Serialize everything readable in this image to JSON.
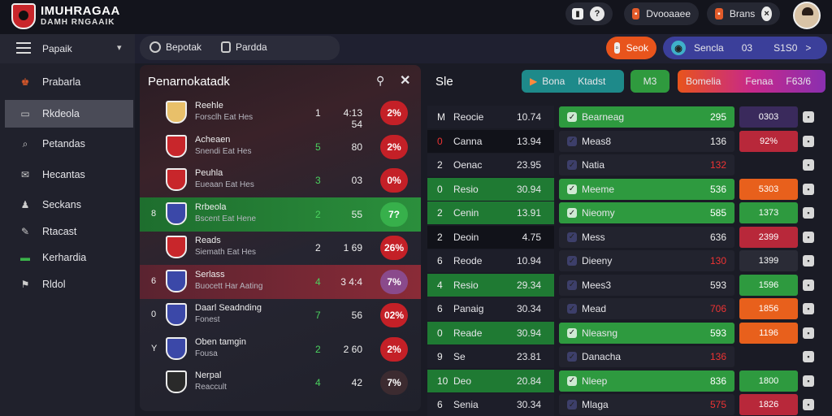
{
  "app": {
    "title1": "IMUHRAGAA",
    "title2": "DAMH RNGAAIK"
  },
  "topbar": {
    "btn1_icon": "?",
    "dropdown1": "Dvooaaee",
    "btn2": "Brans",
    "close": "×"
  },
  "sidebar": {
    "header": "Papaik",
    "chevron": "▾",
    "items": [
      {
        "label": "Prabarla",
        "icon": "trophy-icon",
        "glyph": "♚"
      },
      {
        "label": "Rkdeola",
        "icon": "folder-icon",
        "glyph": "▭"
      },
      {
        "label": "Petandas",
        "icon": "search-icon",
        "glyph": "⌕"
      },
      {
        "label": "Hecantas",
        "icon": "mail-icon",
        "glyph": "✉"
      },
      {
        "label": "Seckans",
        "icon": "person-icon",
        "glyph": "♟"
      },
      {
        "label": "Rtacast",
        "icon": "edit-icon",
        "glyph": "✎"
      },
      {
        "label": "Kerhardia",
        "icon": "screen-icon",
        "glyph": "▬"
      },
      {
        "label": "Rldol",
        "icon": "flag-icon",
        "glyph": "⚑"
      }
    ]
  },
  "subbar": {
    "tab1": "Bepotak",
    "tab2": "Pardda",
    "btn_orange": "Seok",
    "chip": "Sencla",
    "chip_num": "03",
    "chip_value": "S1S0",
    "chip_arrow": ">"
  },
  "left_panel": {
    "title": "Penarnokatadk",
    "rows": [
      {
        "name": "Reehle",
        "sub": "Forsclh Eat Hes",
        "c1": "1",
        "c2": "4:13 54",
        "pct": "2%",
        "color": "#c42027"
      },
      {
        "name": "Acheaen",
        "sub": "Snendi Eat Hes",
        "c1": "5",
        "c2": "80",
        "pct": "2%",
        "color": "#c42027"
      },
      {
        "name": "Peuhla",
        "sub": "Eueaan Eat Hes",
        "c1": "3",
        "c2": "03",
        "pct": "0%",
        "color": "#c42027"
      },
      {
        "name": "Rrbeola",
        "sub": "Bscent Eat Hene",
        "c1": "2",
        "c2": "55",
        "pct": "7?",
        "color": "#37b04b",
        "lead": "8"
      },
      {
        "name": "Reads",
        "sub": "Siemath Eat Hes",
        "c1": "2",
        "c2": "1 69",
        "pct": "26%",
        "color": "#c42027"
      },
      {
        "name": "Serlass",
        "sub": "Buocett Har Aating",
        "c1": "4",
        "c2": "3 4:4",
        "pct": "7%",
        "color": "#8a4a8c",
        "lead": "6"
      },
      {
        "name": "Daarl Seadnding",
        "sub": "Fonest",
        "c1": "7",
        "c2": "56",
        "pct": "02%",
        "color": "#c42027",
        "lead": "0"
      },
      {
        "name": "Oben tamgin",
        "sub": "Fousa",
        "c1": "2",
        "c2": "2 60",
        "pct": "2%",
        "color": "#c42027",
        "lead": "Y"
      },
      {
        "name": "Nerpal",
        "sub": "Reaccult",
        "c1": "4",
        "c2": "42",
        "pct": "7%",
        "color": "#3c2b30"
      }
    ]
  },
  "right_panel": {
    "title": "Sle",
    "tabs": {
      "a": "Bona",
      "b": "Ktadst",
      "c": "M3",
      "d": "Bomelia",
      "e": "Fenaa",
      "f": "F63/6"
    },
    "rows": [
      {
        "rank": "M",
        "name": "Reocie",
        "val": "10.74",
        "team": "Bearneag",
        "score": "295",
        "pct": "0303",
        "bar": "#2e9a3f",
        "sc": "#3a2a5c"
      },
      {
        "rank": "0",
        "name": "Canna",
        "val": "13.94",
        "team": "Meas8",
        "score": "136",
        "pct": "92%",
        "bar": "",
        "sc": "#b8283a"
      },
      {
        "rank": "2",
        "name": "Oenac",
        "val": "23.95",
        "team": "Natia",
        "score": "132",
        "pct": "",
        "bar": "",
        "sc": ""
      },
      {
        "rank": "0",
        "name": "Resio",
        "val": "30.94",
        "team": "Meeme",
        "score": "536",
        "pct": "5303",
        "bar": "#2e9a3f",
        "sc": "#e8601c"
      },
      {
        "rank": "2",
        "name": "Cenin",
        "val": "13.91",
        "team": "Nieomy",
        "score": "585",
        "pct": "1373",
        "bar": "#2e9a3f",
        "sc": "#2e9a3f"
      },
      {
        "rank": "2",
        "name": "Deoin",
        "val": "4.75",
        "team": "Mess",
        "score": "636",
        "pct": "2399",
        "bar": "",
        "sc": "#b8283a"
      },
      {
        "rank": "6",
        "name": "Reode",
        "val": "10.94",
        "team": "Dieeny",
        "score": "130",
        "pct": "1399",
        "bar": "",
        "sc": "#2a2b36"
      },
      {
        "rank": "4",
        "name": "Resio",
        "val": "29.34",
        "team": "Mees3",
        "score": "593",
        "pct": "1596",
        "bar": "",
        "sc": "#2e9a3f"
      },
      {
        "rank": "6",
        "name": "Panaig",
        "val": "30.34",
        "team": "Mead",
        "score": "706",
        "pct": "1856",
        "bar": "",
        "sc": "#e8601c"
      },
      {
        "rank": "0",
        "name": "Reade",
        "val": "30.94",
        "team": "Nleasng",
        "score": "593",
        "pct": "1196",
        "bar": "#2e9a3f",
        "sc": "#e8601c"
      },
      {
        "rank": "9",
        "name": "Se",
        "val": "23.81",
        "team": "Danacha",
        "score": "136",
        "pct": "",
        "bar": "",
        "sc": ""
      },
      {
        "rank": "10",
        "name": "Deo",
        "val": "20.84",
        "team": "Nleep",
        "score": "836",
        "pct": "1800",
        "bar": "#2e9a3f",
        "sc": "#2e9a3f"
      },
      {
        "rank": "6",
        "name": "Senia",
        "val": "30.34",
        "team": "Mlaga",
        "score": "575",
        "pct": "1826",
        "bar": "",
        "sc": "#b8283a"
      }
    ]
  }
}
